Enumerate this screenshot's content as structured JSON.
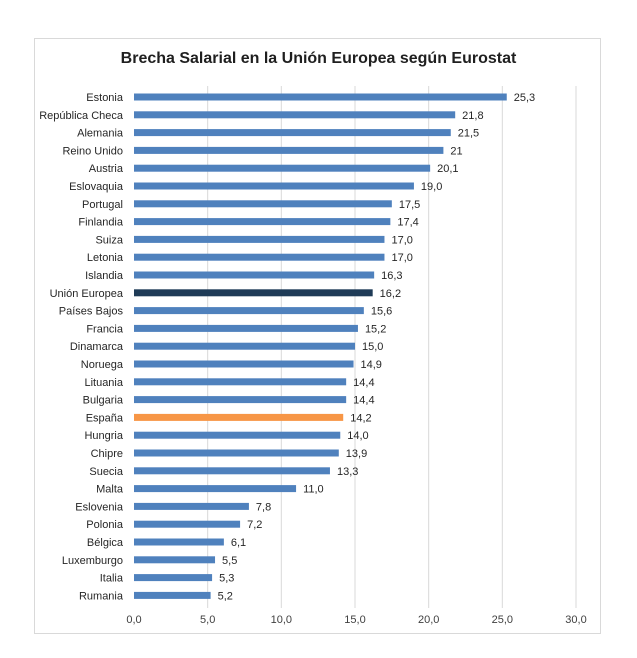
{
  "chart_data": {
    "type": "bar",
    "orientation": "horizontal",
    "title": "Brecha Salarial en la Unión Europea según Eurostat",
    "xlabel": "",
    "ylabel": "",
    "xlim": [
      0,
      30
    ],
    "ticks": [
      "0,0",
      "5,0",
      "10,0",
      "15,0",
      "20,0",
      "25,0",
      "30,0"
    ],
    "tick_values": [
      0,
      5,
      10,
      15,
      20,
      25,
      30
    ],
    "grid": true,
    "legend": "none",
    "colors": {
      "default": "#4f81bd",
      "highlight_eu": "#1f3b57",
      "highlight_es": "#f79646"
    },
    "categories": [
      "Estonia",
      "República Checa",
      "Alemania",
      "Reino Unido",
      "Austria",
      "Eslovaquia",
      "Portugal",
      "Finlandia",
      "Suiza",
      "Letonia",
      "Islandia",
      "Unión Europea",
      "Países Bajos",
      "Francia",
      "Dinamarca",
      "Noruega",
      "Lituania",
      "Bulgaria",
      "España",
      "Hungria",
      "Chipre",
      "Suecia",
      "Malta",
      "Eslovenia",
      "Polonia",
      "Bélgica",
      "Luxemburgo",
      "Italia",
      "Rumania"
    ],
    "values": [
      25.3,
      21.8,
      21.5,
      21,
      20.1,
      19.0,
      17.5,
      17.4,
      17.0,
      17.0,
      16.3,
      16.2,
      15.6,
      15.2,
      15.0,
      14.9,
      14.4,
      14.4,
      14.2,
      14.0,
      13.9,
      13.3,
      11.0,
      7.8,
      7.2,
      6.1,
      5.5,
      5.3,
      5.2
    ],
    "value_labels": [
      "25,3",
      "21,8",
      "21,5",
      "21",
      "20,1",
      "19,0",
      "17,5",
      "17,4",
      "17,0",
      "17,0",
      "16,3",
      "16,2",
      "15,6",
      "15,2",
      "15,0",
      "14,9",
      "14,4",
      "14,4",
      "14,2",
      "14,0",
      "13,9",
      "13,3",
      "11,0",
      "7,8",
      "7,2",
      "6,1",
      "5,5",
      "5,3",
      "5,2"
    ],
    "highlights": {
      "Unión Europea": "highlight_eu",
      "España": "highlight_es"
    }
  }
}
